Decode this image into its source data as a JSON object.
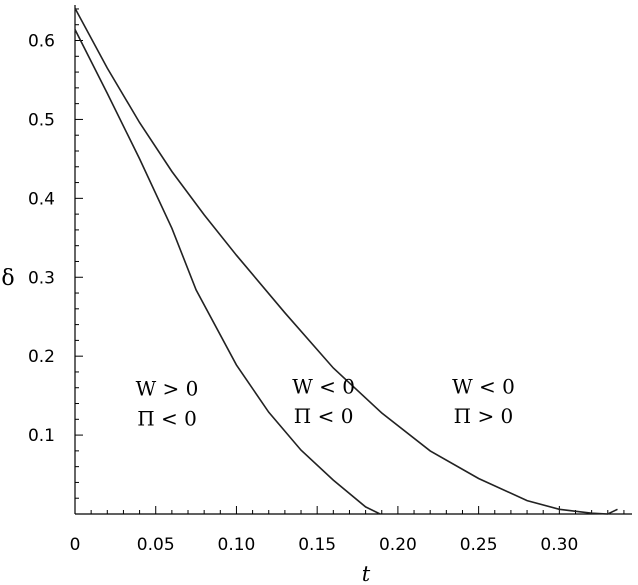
{
  "chart_data": {
    "type": "line",
    "title": "",
    "xlabel": "t",
    "ylabel": "δ",
    "xlim": [
      0,
      0.345
    ],
    "ylim": [
      0,
      0.645
    ],
    "grid": false,
    "x_ticks": [
      {
        "value": 0,
        "label": "0"
      },
      {
        "value": 0.05,
        "label": "0.05"
      },
      {
        "value": 0.1,
        "label": "0.10"
      },
      {
        "value": 0.15,
        "label": "0.15"
      },
      {
        "value": 0.2,
        "label": "0.20"
      },
      {
        "value": 0.25,
        "label": "0.25"
      },
      {
        "value": 0.3,
        "label": "0.30"
      }
    ],
    "y_ticks": [
      {
        "value": 0.1,
        "label": "0.1"
      },
      {
        "value": 0.2,
        "label": "0.2"
      },
      {
        "value": 0.3,
        "label": "0.3"
      },
      {
        "value": 0.4,
        "label": "0.4"
      },
      {
        "value": 0.5,
        "label": "0.5"
      },
      {
        "value": 0.6,
        "label": "0.6"
      }
    ],
    "series": [
      {
        "x": [
          0,
          0.02,
          0.04,
          0.06,
          0.075,
          0.1,
          0.12,
          0.14,
          0.16,
          0.18,
          0.189
        ],
        "y": [
          0.614,
          0.533,
          0.45,
          0.362,
          0.284,
          0.189,
          0.129,
          0.081,
          0.043,
          0.009,
          0
        ]
      },
      {
        "x": [
          0,
          0.02,
          0.04,
          0.06,
          0.08,
          0.1,
          0.13,
          0.16,
          0.19,
          0.22,
          0.25,
          0.28,
          0.3,
          0.32,
          0.33,
          0.336
        ],
        "y": [
          0.641,
          0.565,
          0.496,
          0.434,
          0.379,
          0.328,
          0.255,
          0.185,
          0.128,
          0.08,
          0.045,
          0.017,
          0.006,
          0.001,
          0.0,
          0.006
        ]
      }
    ],
    "annotations": [
      {
        "x": 0.057,
        "y": 0.15,
        "text": "W > 0"
      },
      {
        "x": 0.057,
        "y": 0.112,
        "text": "Π < 0"
      },
      {
        "x": 0.154,
        "y": 0.153,
        "text": "W < 0"
      },
      {
        "x": 0.154,
        "y": 0.115,
        "text": "Π < 0"
      },
      {
        "x": 0.253,
        "y": 0.153,
        "text": "W < 0"
      },
      {
        "x": 0.253,
        "y": 0.115,
        "text": "Π > 0"
      }
    ]
  }
}
